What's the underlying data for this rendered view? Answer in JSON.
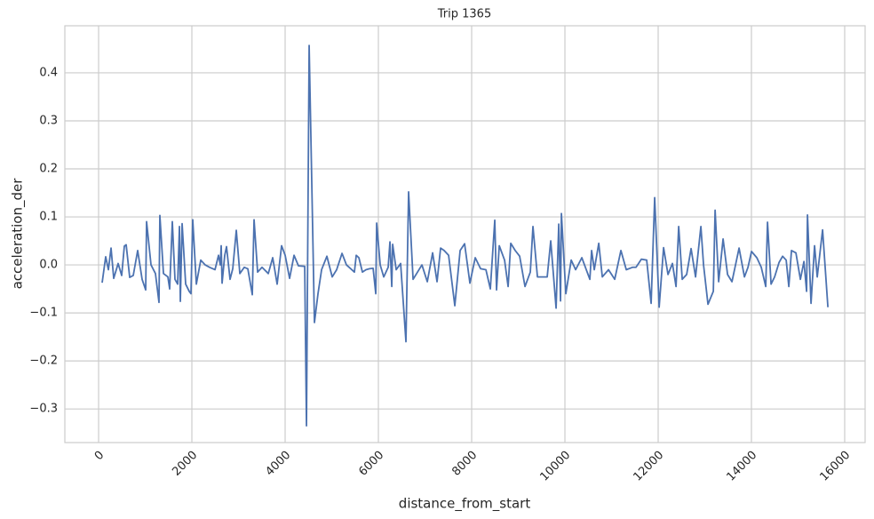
{
  "chart_data": {
    "type": "line",
    "title": "Trip 1365",
    "xlabel": "distance_from_start",
    "ylabel": "acceleration_der",
    "color": "#4c72b0",
    "grid": true,
    "x": [
      76,
      152,
      210,
      267,
      324,
      419,
      495,
      552,
      591,
      667,
      743,
      838,
      933,
      1010,
      1029,
      1124,
      1219,
      1295,
      1314,
      1391,
      1486,
      1524,
      1581,
      1638,
      1695,
      1734,
      1753,
      1791,
      1867,
      1943,
      1981,
      2019,
      2096,
      2191,
      2286,
      2381,
      2496,
      2572,
      2610,
      2629,
      2648,
      2705,
      2743,
      2819,
      2877,
      2953,
      3029,
      3124,
      3200,
      3296,
      3334,
      3410,
      3505,
      3639,
      3734,
      3829,
      3924,
      4001,
      4096,
      4191,
      4286,
      4420,
      4458,
      4515,
      4629,
      4705,
      4782,
      4896,
      5010,
      5105,
      5220,
      5315,
      5429,
      5486,
      5525,
      5582,
      5658,
      5734,
      5810,
      5887,
      5944,
      5963,
      6039,
      6115,
      6210,
      6248,
      6287,
      6306,
      6382,
      6477,
      6591,
      6648,
      6744,
      6839,
      6934,
      7049,
      7163,
      7258,
      7334,
      7410,
      7506,
      7639,
      7753,
      7849,
      7963,
      8077,
      8192,
      8306,
      8401,
      8496,
      8534,
      8592,
      8706,
      8782,
      8839,
      8934,
      9030,
      9144,
      9258,
      9315,
      9411,
      9525,
      9620,
      9696,
      9811,
      9868,
      9906,
      9925,
      10020,
      10135,
      10230,
      10363,
      10458,
      10535,
      10573,
      10630,
      10726,
      10802,
      10935,
      11068,
      11201,
      11316,
      11449,
      11525,
      11640,
      11754,
      11849,
      11925,
      12021,
      12116,
      12211,
      12306,
      12383,
      12440,
      12516,
      12611,
      12706,
      12802,
      12916,
      12973,
      13068,
      13183,
      13221,
      13297,
      13392,
      13488,
      13583,
      13735,
      13850,
      13926,
      14002,
      14116,
      14211,
      14307,
      14345,
      14421,
      14497,
      14592,
      14669,
      14745,
      14802,
      14859,
      14954,
      15050,
      15126,
      15183,
      15202,
      15278,
      15354,
      15411,
      15526,
      15640
    ],
    "values": [
      -0.037,
      0.017,
      -0.01,
      0.035,
      -0.028,
      0.003,
      -0.022,
      0.039,
      0.042,
      -0.026,
      -0.022,
      0.03,
      -0.03,
      -0.052,
      0.09,
      0.0,
      -0.018,
      -0.078,
      0.103,
      -0.018,
      -0.025,
      -0.05,
      0.09,
      -0.03,
      -0.04,
      0.08,
      -0.076,
      0.086,
      -0.04,
      -0.055,
      -0.06,
      0.094,
      -0.04,
      0.01,
      0.0,
      -0.005,
      -0.01,
      0.02,
      0.0,
      0.04,
      -0.038,
      0.02,
      0.038,
      -0.03,
      -0.008,
      0.072,
      -0.018,
      -0.005,
      -0.008,
      -0.062,
      0.094,
      -0.015,
      -0.005,
      -0.018,
      0.015,
      -0.04,
      0.04,
      0.02,
      -0.028,
      0.02,
      -0.002,
      -0.003,
      -0.335,
      0.457,
      -0.12,
      -0.06,
      -0.01,
      0.018,
      -0.025,
      -0.01,
      0.024,
      0.0,
      -0.01,
      -0.015,
      0.02,
      0.015,
      -0.015,
      -0.01,
      -0.008,
      -0.007,
      -0.06,
      0.087,
      0.0,
      -0.025,
      -0.005,
      0.048,
      -0.045,
      0.043,
      -0.01,
      0.003,
      -0.16,
      0.152,
      -0.03,
      -0.015,
      0.0,
      -0.035,
      0.025,
      -0.035,
      0.035,
      0.03,
      0.02,
      -0.085,
      0.03,
      0.044,
      -0.038,
      0.015,
      -0.008,
      -0.01,
      -0.05,
      0.093,
      -0.052,
      0.04,
      0.01,
      -0.045,
      0.045,
      0.03,
      0.018,
      -0.045,
      -0.015,
      0.08,
      -0.025,
      -0.025,
      -0.025,
      0.05,
      -0.09,
      0.085,
      -0.075,
      0.107,
      -0.06,
      0.01,
      -0.01,
      0.015,
      -0.01,
      -0.03,
      0.03,
      -0.01,
      0.045,
      -0.025,
      -0.01,
      -0.03,
      0.03,
      -0.01,
      -0.005,
      -0.005,
      0.012,
      0.01,
      -0.08,
      0.14,
      -0.088,
      0.036,
      -0.02,
      0.003,
      -0.045,
      0.08,
      -0.03,
      -0.02,
      0.034,
      -0.025,
      0.08,
      0.0,
      -0.082,
      -0.055,
      0.114,
      -0.035,
      0.054,
      -0.02,
      -0.035,
      0.035,
      -0.025,
      -0.005,
      0.028,
      0.015,
      -0.005,
      -0.045,
      0.089,
      -0.04,
      -0.025,
      0.005,
      0.018,
      0.01,
      -0.045,
      0.03,
      0.025,
      -0.03,
      0.007,
      -0.055,
      0.104,
      -0.08,
      0.04,
      -0.025,
      0.073,
      -0.088
    ],
    "xlim": [
      -724,
      16438
    ],
    "xticks": [
      0,
      2000,
      4000,
      6000,
      8000,
      10000,
      12000,
      14000,
      16000
    ],
    "ylim": [
      -0.37,
      0.498
    ],
    "yticks": [
      {
        "value": -0.3,
        "label": "−0.3"
      },
      {
        "value": -0.2,
        "label": "−0.2"
      },
      {
        "value": -0.1,
        "label": "−0.1"
      },
      {
        "value": 0,
        "label": "0.0"
      },
      0.1,
      0.2,
      0.3,
      0.4
    ]
  }
}
